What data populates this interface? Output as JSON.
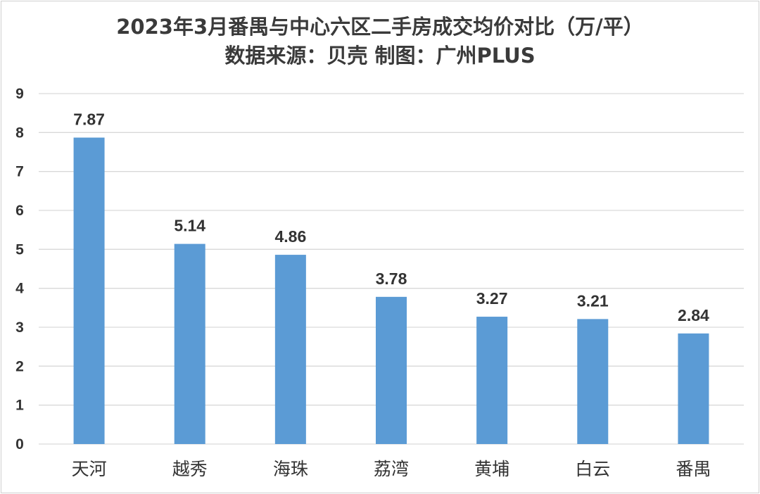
{
  "chart_data": {
    "type": "bar",
    "title": "2023年3月番禺与中心六区二手房成交均价对比（万/平）",
    "subtitle": "数据来源：贝壳  制图：广州PLUS",
    "xlabel": "",
    "ylabel": "",
    "categories": [
      "天河",
      "越秀",
      "海珠",
      "荔湾",
      "黄埔",
      "白云",
      "番禺"
    ],
    "values": [
      7.87,
      5.14,
      4.86,
      3.78,
      3.27,
      3.21,
      2.84
    ],
    "data_labels": [
      "7.87",
      "5.14",
      "4.86",
      "3.78",
      "3.27",
      "3.21",
      "2.84"
    ],
    "ylim": [
      0,
      9
    ],
    "yticks": [
      "0",
      "1",
      "2",
      "3",
      "4",
      "5",
      "6",
      "7",
      "8",
      "9"
    ],
    "grid": true,
    "legend": "none",
    "bar_color": "#5b9bd5",
    "grid_color": "#d9d9d9"
  }
}
